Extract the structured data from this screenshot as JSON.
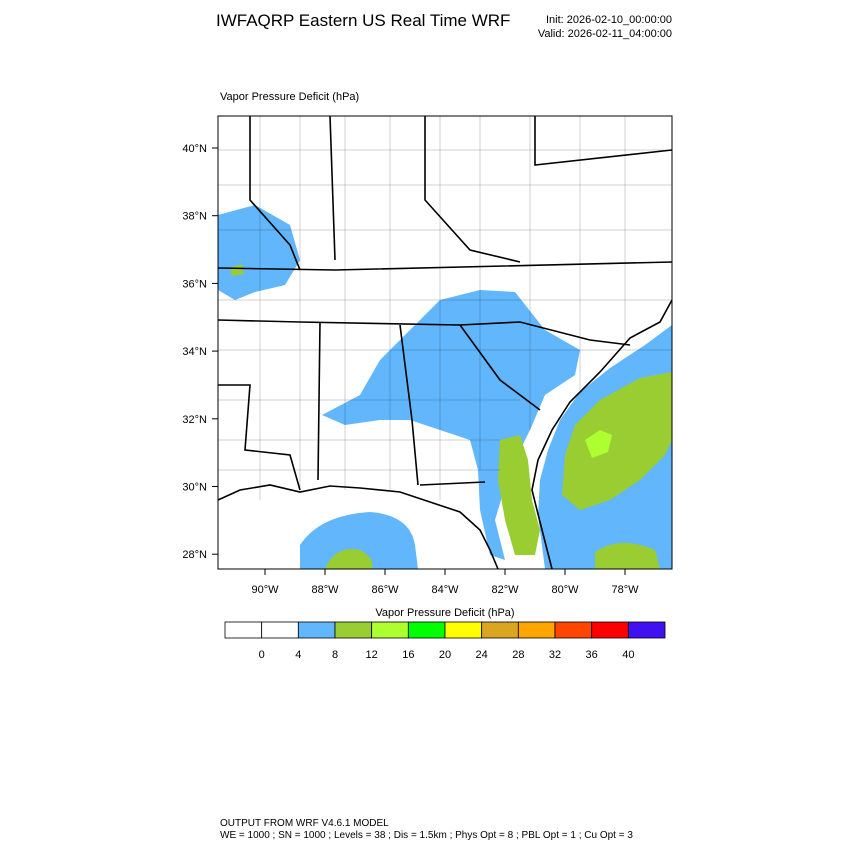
{
  "header": {
    "title": "IWFAQRP Eastern US Real Time WRF",
    "init": "Init: 2026-02-10_00:00:00",
    "valid": "Valid: 2026-02-11_04:00:00"
  },
  "map": {
    "subtitle": "Vapor Pressure Deficit   (hPa)",
    "lat_labels": [
      "40°N",
      "38°N",
      "36°N",
      "34°N",
      "32°N",
      "30°N",
      "28°N"
    ],
    "lon_labels": [
      "90°W",
      "88°W",
      "86°W",
      "84°W",
      "82°W",
      "80°W",
      "78°W"
    ]
  },
  "colorbar": {
    "title": "Vapor Pressure Deficit  (hPa)",
    "colors": [
      "#ffffff",
      "#ffffff",
      "#62b6fc",
      "#9acd32",
      "#adff2f",
      "#00ff00",
      "#ffff00",
      "#daa520",
      "#ffa500",
      "#ff4500",
      "#ff0000",
      "#4010f0"
    ],
    "labels": [
      "0",
      "4",
      "8",
      "12",
      "16",
      "20",
      "24",
      "28",
      "32",
      "36",
      "40"
    ]
  },
  "footer": {
    "line1": "OUTPUT FROM WRF V4.6.1 MODEL",
    "line2": "WE = 1000 ; SN = 1000 ; Levels = 38 ; Dis = 1.5km ; Phys Opt = 8 ; PBL Opt = 1 ; Cu Opt = 3"
  }
}
